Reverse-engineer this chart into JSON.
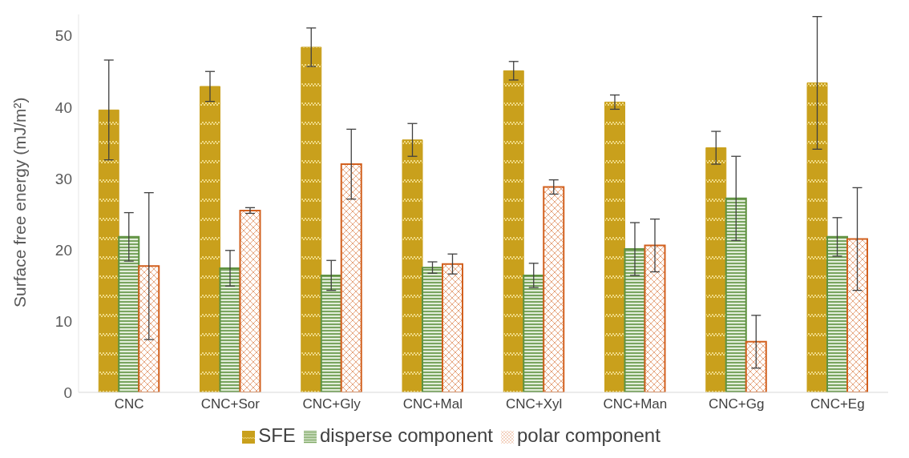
{
  "chart_data": {
    "type": "bar",
    "ylabel": "Surface free energy (mJ/m²)",
    "categories": [
      "CNC",
      "CNC+Sor",
      "CNC+Gly",
      "CNC+Mal",
      "CNC+Xyl",
      "CNC+Man",
      "CNC+Gg",
      "CNC+Eg"
    ],
    "series": [
      {
        "name": "SFE",
        "color": "#c9a01c",
        "values": [
          39.6,
          42.9,
          48.4,
          35.4,
          45.1,
          40.7,
          34.3,
          43.4
        ],
        "errors": [
          7.0,
          2.1,
          2.7,
          2.3,
          1.3,
          1.0,
          2.3,
          9.3
        ]
      },
      {
        "name": "disperse component",
        "color": "#5f9140",
        "values": [
          21.8,
          17.4,
          16.4,
          17.5,
          16.4,
          20.1,
          27.2,
          21.8
        ],
        "errors": [
          3.4,
          2.5,
          2.1,
          0.8,
          1.7,
          3.7,
          5.9,
          2.7
        ]
      },
      {
        "name": "polar component",
        "color": "#d2601e",
        "values": [
          17.7,
          25.5,
          32.0,
          18.0,
          28.8,
          20.6,
          7.1,
          21.5
        ],
        "errors": [
          10.3,
          0.4,
          4.9,
          1.4,
          1.0,
          3.7,
          3.7,
          7.2
        ]
      }
    ],
    "ylim": [
      0,
      53
    ],
    "yticks": [
      0,
      10,
      20,
      30,
      40,
      50
    ],
    "grid": false,
    "legend": "bottom"
  }
}
